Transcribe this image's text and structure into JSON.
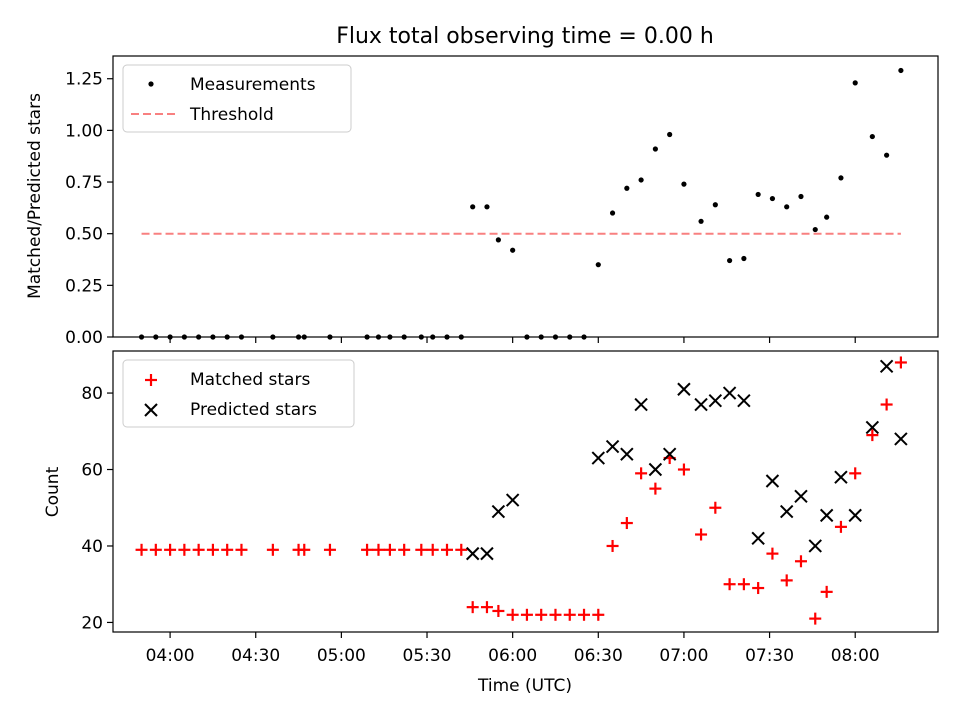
{
  "chart_data": [
    {
      "type": "scatter",
      "title": "Flux total observing time = 0.00 h",
      "xlabel": "",
      "ylabel": "Matched/Predicted stars",
      "ylim": [
        0,
        1.36
      ],
      "yticks": [
        "0.00",
        "0.25",
        "0.50",
        "0.75",
        "1.00",
        "1.25"
      ],
      "xticks": [],
      "legend": "top-left",
      "series": [
        {
          "name": "Measurements",
          "marker": "dot",
          "color": "#000000",
          "points": [
            [
              "03:50",
              0
            ],
            [
              "03:55",
              0
            ],
            [
              "04:00",
              0
            ],
            [
              "04:05",
              0
            ],
            [
              "04:10",
              0
            ],
            [
              "04:15",
              0
            ],
            [
              "04:20",
              0
            ],
            [
              "04:25",
              0
            ],
            [
              "04:36",
              0
            ],
            [
              "04:45",
              0
            ],
            [
              "04:47",
              0
            ],
            [
              "04:56",
              0
            ],
            [
              "05:09",
              0
            ],
            [
              "05:13",
              0
            ],
            [
              "05:17",
              0
            ],
            [
              "05:22",
              0
            ],
            [
              "05:28",
              0
            ],
            [
              "05:32",
              0
            ],
            [
              "05:37",
              0
            ],
            [
              "05:42",
              0
            ],
            [
              "05:46",
              0.63
            ],
            [
              "05:51",
              0.63
            ],
            [
              "05:55",
              0.47
            ],
            [
              "06:00",
              0.42
            ],
            [
              "06:05",
              0
            ],
            [
              "06:10",
              0
            ],
            [
              "06:15",
              0
            ],
            [
              "06:20",
              0
            ],
            [
              "06:25",
              0
            ],
            [
              "06:30",
              0.35
            ],
            [
              "06:35",
              0.6
            ],
            [
              "06:40",
              0.72
            ],
            [
              "06:45",
              0.76
            ],
            [
              "06:50",
              0.91
            ],
            [
              "06:55",
              0.98
            ],
            [
              "07:00",
              0.74
            ],
            [
              "07:06",
              0.56
            ],
            [
              "07:11",
              0.64
            ],
            [
              "07:16",
              0.37
            ],
            [
              "07:21",
              0.38
            ],
            [
              "07:26",
              0.69
            ],
            [
              "07:31",
              0.67
            ],
            [
              "07:36",
              0.63
            ],
            [
              "07:41",
              0.68
            ],
            [
              "07:46",
              0.52
            ],
            [
              "07:50",
              0.58
            ],
            [
              "07:55",
              0.77
            ],
            [
              "08:00",
              1.23
            ],
            [
              "08:06",
              0.97
            ],
            [
              "08:11",
              0.88
            ],
            [
              "08:16",
              1.29
            ]
          ]
        },
        {
          "name": "Threshold",
          "marker": "dashed-line",
          "color": "#f88080",
          "x": [
            "03:50",
            "08:16"
          ],
          "y": [
            0.5,
            0.5
          ]
        }
      ]
    },
    {
      "type": "scatter",
      "title": "",
      "xlabel": "Time (UTC)",
      "ylabel": "Count",
      "ylim": [
        17.5,
        91
      ],
      "yticks": [
        "20",
        "40",
        "60",
        "80"
      ],
      "xticks": [
        "04:00",
        "04:30",
        "05:00",
        "05:30",
        "06:00",
        "06:30",
        "07:00",
        "07:30",
        "08:00"
      ],
      "legend": "top-left",
      "series": [
        {
          "name": "Matched stars",
          "marker": "plus",
          "color": "#ff0000",
          "points": [
            [
              "03:50",
              39
            ],
            [
              "03:55",
              39
            ],
            [
              "04:00",
              39
            ],
            [
              "04:05",
              39
            ],
            [
              "04:10",
              39
            ],
            [
              "04:15",
              39
            ],
            [
              "04:20",
              39
            ],
            [
              "04:25",
              39
            ],
            [
              "04:36",
              39
            ],
            [
              "04:45",
              39
            ],
            [
              "04:47",
              39
            ],
            [
              "04:56",
              39
            ],
            [
              "05:09",
              39
            ],
            [
              "05:13",
              39
            ],
            [
              "05:17",
              39
            ],
            [
              "05:22",
              39
            ],
            [
              "05:28",
              39
            ],
            [
              "05:32",
              39
            ],
            [
              "05:37",
              39
            ],
            [
              "05:42",
              39
            ],
            [
              "05:46",
              24
            ],
            [
              "05:51",
              24
            ],
            [
              "05:55",
              23
            ],
            [
              "06:00",
              22
            ],
            [
              "06:05",
              22
            ],
            [
              "06:10",
              22
            ],
            [
              "06:15",
              22
            ],
            [
              "06:20",
              22
            ],
            [
              "06:25",
              22
            ],
            [
              "06:30",
              22
            ],
            [
              "06:35",
              40
            ],
            [
              "06:40",
              46
            ],
            [
              "06:45",
              59
            ],
            [
              "06:50",
              55
            ],
            [
              "06:55",
              63
            ],
            [
              "07:00",
              60
            ],
            [
              "07:06",
              43
            ],
            [
              "07:11",
              50
            ],
            [
              "07:16",
              30
            ],
            [
              "07:21",
              30
            ],
            [
              "07:26",
              29
            ],
            [
              "07:31",
              38
            ],
            [
              "07:36",
              31
            ],
            [
              "07:41",
              36
            ],
            [
              "07:46",
              21
            ],
            [
              "07:50",
              28
            ],
            [
              "07:55",
              45
            ],
            [
              "08:00",
              59
            ],
            [
              "08:06",
              69
            ],
            [
              "08:11",
              77
            ],
            [
              "08:16",
              88
            ]
          ]
        },
        {
          "name": "Predicted stars",
          "marker": "x",
          "color": "#000000",
          "points": [
            [
              "05:46",
              38
            ],
            [
              "05:51",
              38
            ],
            [
              "05:55",
              49
            ],
            [
              "06:00",
              52
            ],
            [
              "06:30",
              63
            ],
            [
              "06:35",
              66
            ],
            [
              "06:40",
              64
            ],
            [
              "06:45",
              77
            ],
            [
              "06:50",
              60
            ],
            [
              "06:55",
              64
            ],
            [
              "07:00",
              81
            ],
            [
              "07:06",
              77
            ],
            [
              "07:11",
              78
            ],
            [
              "07:16",
              80
            ],
            [
              "07:21",
              78
            ],
            [
              "07:26",
              42
            ],
            [
              "07:31",
              57
            ],
            [
              "07:36",
              49
            ],
            [
              "07:41",
              53
            ],
            [
              "07:46",
              40
            ],
            [
              "07:50",
              48
            ],
            [
              "07:55",
              58
            ],
            [
              "08:00",
              48
            ],
            [
              "08:06",
              71
            ],
            [
              "08:11",
              87
            ],
            [
              "08:16",
              68
            ]
          ]
        }
      ]
    }
  ]
}
